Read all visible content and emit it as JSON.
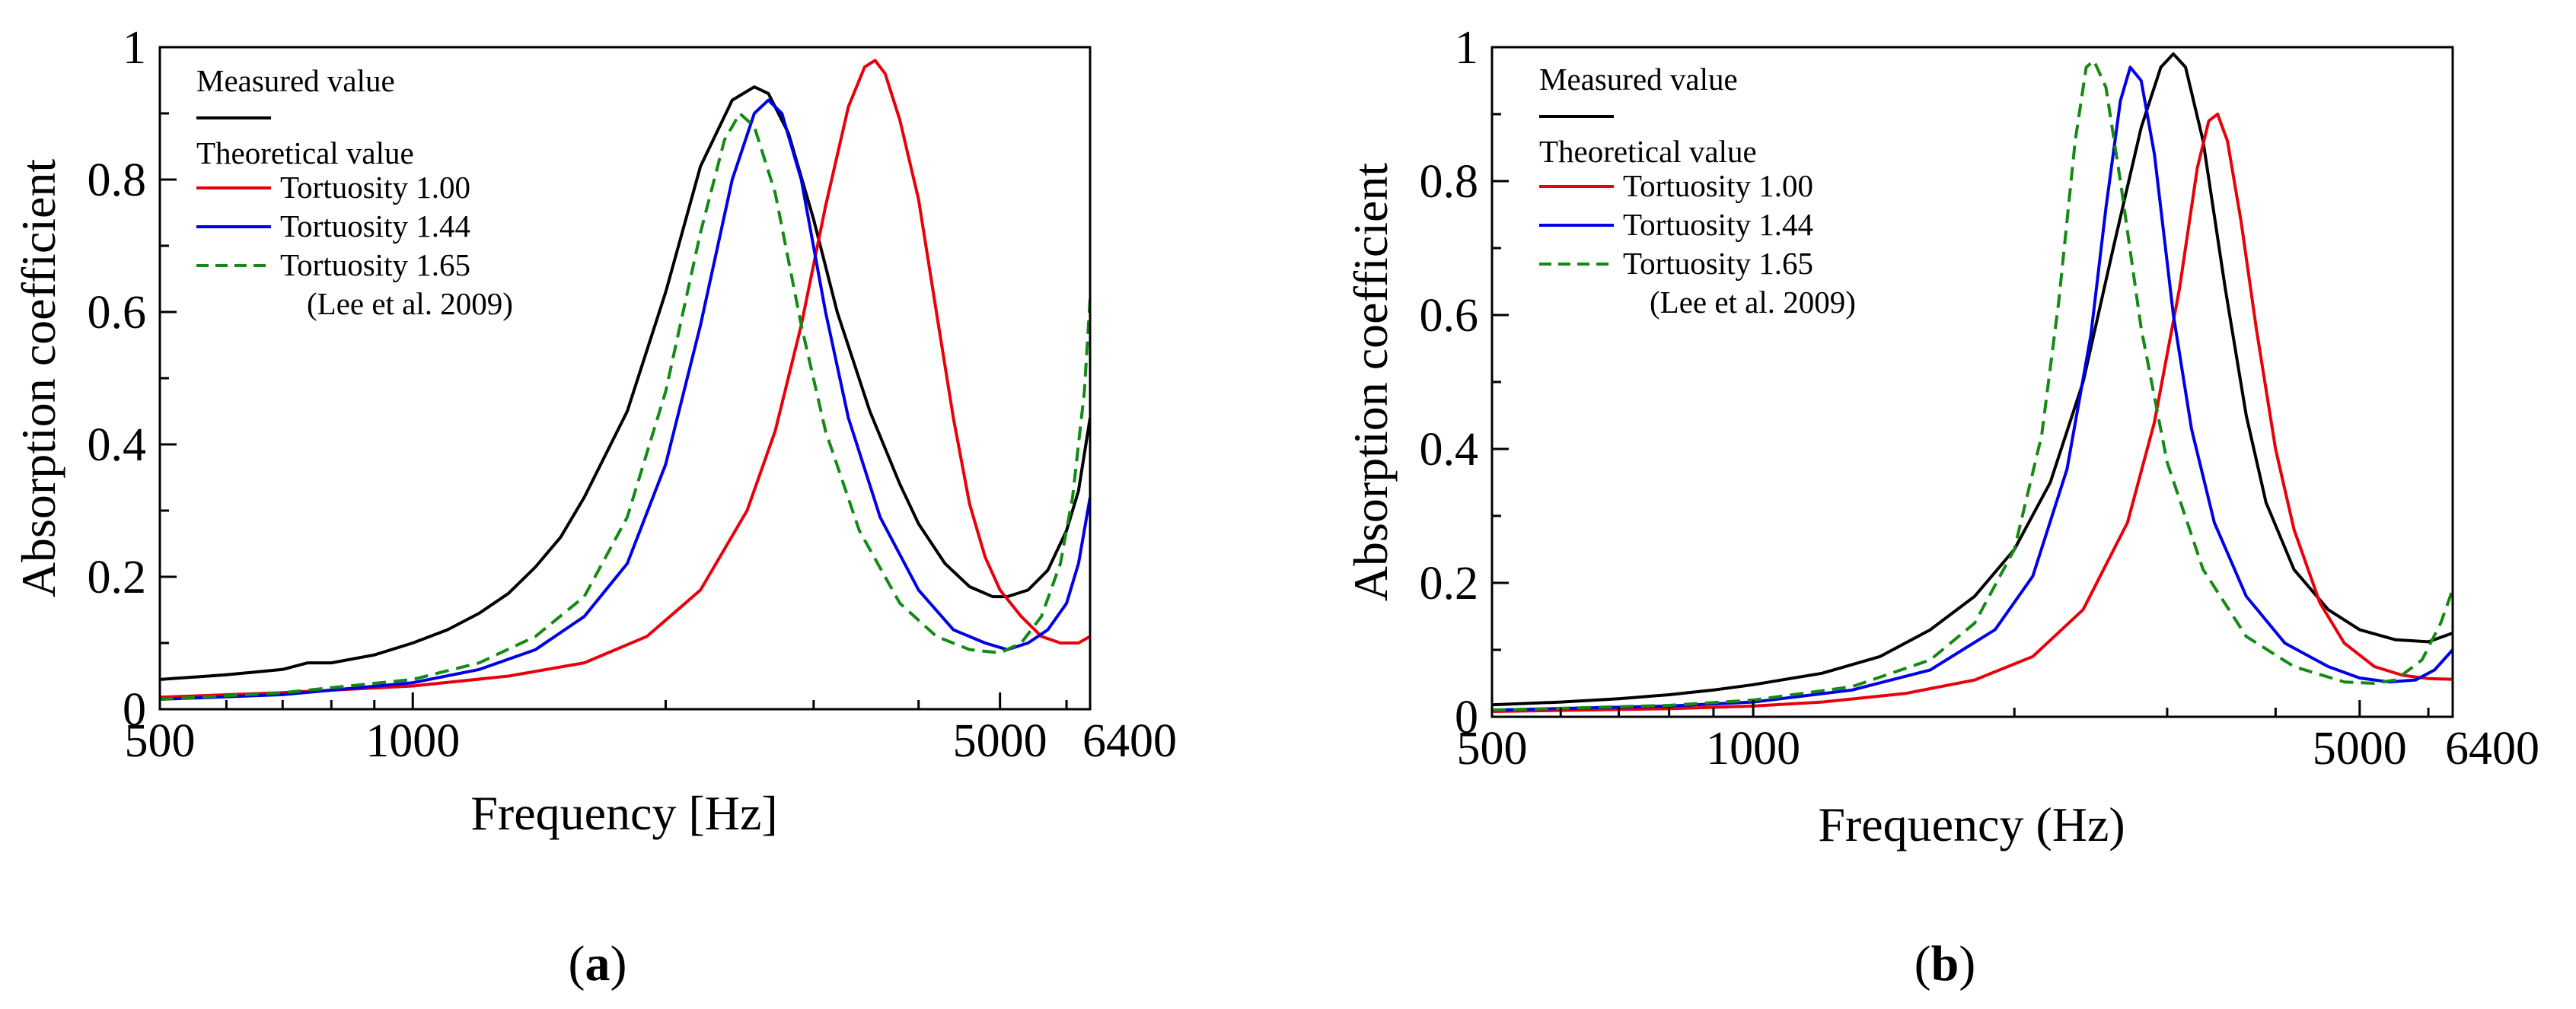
{
  "figure": {
    "panels": [
      {
        "label_open": "(",
        "label_letter": "a",
        "label_close": ")"
      },
      {
        "label_open": "(",
        "label_letter": "b",
        "label_close": ")"
      }
    ]
  },
  "chart_data": [
    {
      "type": "line",
      "panel": "a",
      "xlabel": "Frequency [Hz]",
      "ylabel": "Absorption coefficient",
      "xscale": "log",
      "xlim": [
        500,
        6400
      ],
      "ylim": [
        0,
        1
      ],
      "xticks": [
        500,
        1000,
        5000,
        6400
      ],
      "xtick_labels": [
        "500",
        "1000",
        "5000",
        "6400"
      ],
      "yticks": [
        0,
        0.2,
        0.4,
        0.6,
        0.8,
        1
      ],
      "ytick_labels": [
        "0",
        "0.2",
        "0.4",
        "0.6",
        "0.8",
        "1"
      ],
      "legend": {
        "placement": "top-left",
        "group1_title": "Measured value",
        "group2_title": "Theoretical value",
        "note": "(Lee et al. 2009)"
      },
      "series": [
        {
          "name": "Measured value",
          "color": "#000000",
          "dash": "solid",
          "legend_group": 1,
          "points": [
            [
              500,
              0.045
            ],
            [
              600,
              0.052
            ],
            [
              700,
              0.06
            ],
            [
              750,
              0.07
            ],
            [
              800,
              0.07
            ],
            [
              900,
              0.082
            ],
            [
              1000,
              0.1
            ],
            [
              1100,
              0.12
            ],
            [
              1200,
              0.145
            ],
            [
              1300,
              0.175
            ],
            [
              1400,
              0.215
            ],
            [
              1500,
              0.26
            ],
            [
              1600,
              0.32
            ],
            [
              1800,
              0.45
            ],
            [
              2000,
              0.63
            ],
            [
              2200,
              0.82
            ],
            [
              2400,
              0.92
            ],
            [
              2550,
              0.94
            ],
            [
              2650,
              0.93
            ],
            [
              2800,
              0.87
            ],
            [
              3000,
              0.74
            ],
            [
              3200,
              0.6
            ],
            [
              3500,
              0.45
            ],
            [
              3800,
              0.34
            ],
            [
              4000,
              0.28
            ],
            [
              4300,
              0.22
            ],
            [
              4600,
              0.185
            ],
            [
              4900,
              0.17
            ],
            [
              5100,
              0.17
            ],
            [
              5400,
              0.18
            ],
            [
              5700,
              0.21
            ],
            [
              6000,
              0.27
            ],
            [
              6200,
              0.33
            ],
            [
              6400,
              0.44
            ]
          ]
        },
        {
          "name": "Tortuosity 1.00",
          "color": "#e8000b",
          "dash": "solid",
          "legend_group": 2,
          "points": [
            [
              500,
              0.018
            ],
            [
              700,
              0.025
            ],
            [
              1000,
              0.035
            ],
            [
              1300,
              0.05
            ],
            [
              1600,
              0.07
            ],
            [
              1900,
              0.11
            ],
            [
              2200,
              0.18
            ],
            [
              2500,
              0.3
            ],
            [
              2700,
              0.42
            ],
            [
              2900,
              0.58
            ],
            [
              3100,
              0.76
            ],
            [
              3300,
              0.91
            ],
            [
              3450,
              0.97
            ],
            [
              3550,
              0.98
            ],
            [
              3650,
              0.96
            ],
            [
              3800,
              0.89
            ],
            [
              4000,
              0.77
            ],
            [
              4200,
              0.6
            ],
            [
              4400,
              0.44
            ],
            [
              4600,
              0.31
            ],
            [
              4800,
              0.23
            ],
            [
              5000,
              0.18
            ],
            [
              5300,
              0.14
            ],
            [
              5600,
              0.11
            ],
            [
              5900,
              0.1
            ],
            [
              6200,
              0.1
            ],
            [
              6400,
              0.11
            ]
          ]
        },
        {
          "name": "Tortuosity 1.44",
          "color": "#0000e6",
          "dash": "solid",
          "legend_group": 2,
          "points": [
            [
              500,
              0.015
            ],
            [
              700,
              0.022
            ],
            [
              1000,
              0.04
            ],
            [
              1200,
              0.06
            ],
            [
              1400,
              0.09
            ],
            [
              1600,
              0.14
            ],
            [
              1800,
              0.22
            ],
            [
              2000,
              0.37
            ],
            [
              2200,
              0.58
            ],
            [
              2400,
              0.8
            ],
            [
              2550,
              0.9
            ],
            [
              2650,
              0.92
            ],
            [
              2750,
              0.9
            ],
            [
              2900,
              0.8
            ],
            [
              3100,
              0.6
            ],
            [
              3300,
              0.44
            ],
            [
              3600,
              0.29
            ],
            [
              4000,
              0.18
            ],
            [
              4400,
              0.12
            ],
            [
              4800,
              0.1
            ],
            [
              5100,
              0.09
            ],
            [
              5400,
              0.1
            ],
            [
              5700,
              0.12
            ],
            [
              6000,
              0.16
            ],
            [
              6200,
              0.22
            ],
            [
              6400,
              0.32
            ]
          ]
        },
        {
          "name": "Tortuosity 1.65",
          "color": "#138a13",
          "dash": "dashed",
          "legend_group": 2,
          "points": [
            [
              500,
              0.015
            ],
            [
              700,
              0.025
            ],
            [
              1000,
              0.045
            ],
            [
              1200,
              0.07
            ],
            [
              1400,
              0.11
            ],
            [
              1600,
              0.17
            ],
            [
              1800,
              0.29
            ],
            [
              2000,
              0.48
            ],
            [
              2200,
              0.72
            ],
            [
              2350,
              0.86
            ],
            [
              2450,
              0.9
            ],
            [
              2550,
              0.88
            ],
            [
              2700,
              0.78
            ],
            [
              2900,
              0.58
            ],
            [
              3100,
              0.42
            ],
            [
              3400,
              0.27
            ],
            [
              3800,
              0.16
            ],
            [
              4200,
              0.11
            ],
            [
              4600,
              0.09
            ],
            [
              5000,
              0.085
            ],
            [
              5300,
              0.1
            ],
            [
              5600,
              0.14
            ],
            [
              5900,
              0.22
            ],
            [
              6100,
              0.32
            ],
            [
              6300,
              0.48
            ],
            [
              6400,
              0.62
            ]
          ]
        }
      ]
    },
    {
      "type": "line",
      "panel": "b",
      "xlabel": "Frequency (Hz)",
      "ylabel": "Absorption coefficient",
      "xscale": "log",
      "xlim": [
        500,
        6400
      ],
      "ylim": [
        0,
        1
      ],
      "xticks": [
        500,
        1000,
        5000,
        6400
      ],
      "xtick_labels": [
        "500",
        "1000",
        "5000",
        "6400"
      ],
      "yticks": [
        0,
        0.2,
        0.4,
        0.6,
        0.8,
        1
      ],
      "ytick_labels": [
        "0",
        "0.2",
        "0.4",
        "0.6",
        "0.8",
        "1"
      ],
      "legend": {
        "placement": "top-left",
        "group1_title": "Measured value",
        "group2_title": "Theoretical value",
        "note": "(Lee et al. 2009)"
      },
      "series": [
        {
          "name": "Measured value",
          "color": "#000000",
          "dash": "solid",
          "legend_group": 1,
          "points": [
            [
              500,
              0.018
            ],
            [
              600,
              0.022
            ],
            [
              700,
              0.027
            ],
            [
              800,
              0.033
            ],
            [
              900,
              0.04
            ],
            [
              1000,
              0.048
            ],
            [
              1200,
              0.065
            ],
            [
              1400,
              0.09
            ],
            [
              1600,
              0.13
            ],
            [
              1800,
              0.18
            ],
            [
              2000,
              0.25
            ],
            [
              2200,
              0.35
            ],
            [
              2400,
              0.5
            ],
            [
              2600,
              0.7
            ],
            [
              2800,
              0.88
            ],
            [
              2950,
              0.97
            ],
            [
              3050,
              0.99
            ],
            [
              3150,
              0.97
            ],
            [
              3300,
              0.86
            ],
            [
              3500,
              0.64
            ],
            [
              3700,
              0.45
            ],
            [
              3900,
              0.32
            ],
            [
              4200,
              0.22
            ],
            [
              4600,
              0.16
            ],
            [
              5000,
              0.13
            ],
            [
              5500,
              0.115
            ],
            [
              6000,
              0.112
            ],
            [
              6400,
              0.125
            ]
          ]
        },
        {
          "name": "Tortuosity 1.00",
          "color": "#e8000b",
          "dash": "solid",
          "legend_group": 2,
          "points": [
            [
              500,
              0.008
            ],
            [
              800,
              0.012
            ],
            [
              1000,
              0.016
            ],
            [
              1200,
              0.022
            ],
            [
              1500,
              0.035
            ],
            [
              1800,
              0.055
            ],
            [
              2100,
              0.09
            ],
            [
              2400,
              0.16
            ],
            [
              2700,
              0.29
            ],
            [
              2900,
              0.44
            ],
            [
              3100,
              0.64
            ],
            [
              3250,
              0.82
            ],
            [
              3350,
              0.89
            ],
            [
              3430,
              0.9
            ],
            [
              3520,
              0.86
            ],
            [
              3650,
              0.74
            ],
            [
              3800,
              0.58
            ],
            [
              4000,
              0.4
            ],
            [
              4200,
              0.28
            ],
            [
              4500,
              0.17
            ],
            [
              4800,
              0.11
            ],
            [
              5200,
              0.075
            ],
            [
              5600,
              0.062
            ],
            [
              6000,
              0.057
            ],
            [
              6400,
              0.056
            ]
          ]
        },
        {
          "name": "Tortuosity 1.44",
          "color": "#0000e6",
          "dash": "solid",
          "legend_group": 2,
          "points": [
            [
              500,
              0.01
            ],
            [
              800,
              0.016
            ],
            [
              1000,
              0.022
            ],
            [
              1300,
              0.04
            ],
            [
              1600,
              0.07
            ],
            [
              1900,
              0.13
            ],
            [
              2100,
              0.21
            ],
            [
              2300,
              0.37
            ],
            [
              2450,
              0.57
            ],
            [
              2550,
              0.76
            ],
            [
              2650,
              0.92
            ],
            [
              2720,
              0.97
            ],
            [
              2800,
              0.95
            ],
            [
              2900,
              0.84
            ],
            [
              3050,
              0.6
            ],
            [
              3200,
              0.43
            ],
            [
              3400,
              0.29
            ],
            [
              3700,
              0.18
            ],
            [
              4100,
              0.11
            ],
            [
              4600,
              0.075
            ],
            [
              5000,
              0.058
            ],
            [
              5400,
              0.052
            ],
            [
              5800,
              0.055
            ],
            [
              6100,
              0.07
            ],
            [
              6400,
              0.1
            ]
          ]
        },
        {
          "name": "Tortuosity 1.65",
          "color": "#138a13",
          "dash": "dashed",
          "legend_group": 2,
          "points": [
            [
              500,
              0.01
            ],
            [
              800,
              0.017
            ],
            [
              1000,
              0.025
            ],
            [
              1300,
              0.045
            ],
            [
              1600,
              0.085
            ],
            [
              1800,
              0.14
            ],
            [
              2000,
              0.25
            ],
            [
              2150,
              0.42
            ],
            [
              2250,
              0.62
            ],
            [
              2350,
              0.86
            ],
            [
              2420,
              0.97
            ],
            [
              2470,
              0.98
            ],
            [
              2550,
              0.94
            ],
            [
              2650,
              0.8
            ],
            [
              2800,
              0.58
            ],
            [
              3000,
              0.38
            ],
            [
              3300,
              0.22
            ],
            [
              3700,
              0.12
            ],
            [
              4200,
              0.075
            ],
            [
              4800,
              0.052
            ],
            [
              5200,
              0.05
            ],
            [
              5500,
              0.055
            ],
            [
              5900,
              0.085
            ],
            [
              6200,
              0.14
            ],
            [
              6400,
              0.19
            ]
          ]
        }
      ]
    }
  ]
}
